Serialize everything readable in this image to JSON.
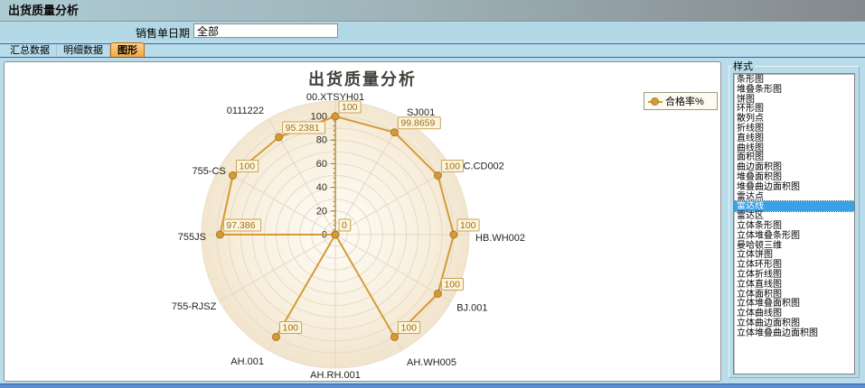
{
  "window": {
    "title": "出货质量分析"
  },
  "filter": {
    "label": "销售单日期",
    "value": "全部"
  },
  "tabs": [
    {
      "label": "汇总数据",
      "active": false
    },
    {
      "label": "明细数据",
      "active": false
    },
    {
      "label": "图形",
      "active": true
    }
  ],
  "chart_data": {
    "type": "radar-line",
    "title": "出货质量分析",
    "categories": [
      "00.XTSYH01",
      "SJ001",
      "SC.CD002",
      "HB.WH002",
      "BJ.001",
      "AH.WH005",
      "AH.RH.001",
      "AH.001",
      "755-RJSZ",
      "755JS",
      "755-CS",
      "0111222"
    ],
    "series": [
      {
        "name": "合格率%",
        "values": [
          100,
          99.8659,
          100,
          100,
          100,
          100,
          0,
          100,
          0,
          97.386,
          100,
          95.2381
        ]
      }
    ],
    "value_labels": [
      "100",
      "99.8659",
      "100",
      "100",
      "100",
      "100",
      "0",
      "100",
      "0",
      "97.386",
      "100",
      "95.2381"
    ],
    "axis": {
      "min": 0,
      "max": 100,
      "ticks": [
        0,
        20,
        40,
        60,
        80,
        100
      ]
    },
    "legend_position": "right",
    "grid": "circular",
    "colors": {
      "line": "#d59a38",
      "point_fill": "#d59a38",
      "point_stroke": "#ad761c",
      "label_box_bg": "#fcf4de",
      "label_box_border": "#c6a459",
      "label_text": "#a36d15",
      "disc_edge": "#f1e2c9",
      "ring": "#e6dac3",
      "axis": "#ab8433"
    }
  },
  "style_panel": {
    "title": "样式",
    "selected_index": 13,
    "items": [
      "条形图",
      "堆叠条形图",
      "饼图",
      "环形图",
      "散列点",
      "折线图",
      "直线图",
      "曲线图",
      "面积图",
      "曲边面积图",
      "堆叠面积图",
      "堆叠曲边面积图",
      "雷达点",
      "雷达线",
      "雷达区",
      "立体条形图",
      "立体堆叠条形图",
      "曼哈顿三维",
      "立体饼图",
      "立体环形图",
      "立体折线图",
      "立体直线图",
      "立体面积图",
      "立体堆叠面积图",
      "立体曲线图",
      "立体曲边面积图",
      "立体堆叠曲边面积图"
    ]
  }
}
